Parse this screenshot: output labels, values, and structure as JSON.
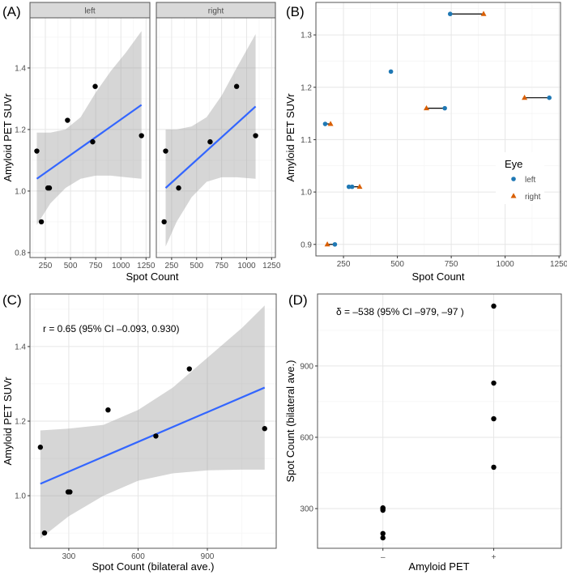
{
  "chart_data": [
    {
      "panel_label": "(A)",
      "type": "scatter",
      "facets": [
        {
          "label": "left",
          "points": [
            [
              165,
              1.13
            ],
            [
              210,
              0.9
            ],
            [
              275,
              1.01
            ],
            [
              290,
              1.01
            ],
            [
              470,
              1.23
            ],
            [
              720,
              1.16
            ],
            [
              745,
              1.34
            ],
            [
              1205,
              1.18
            ]
          ],
          "fit": [
            [
              165,
              1.04
            ],
            [
              1205,
              1.28
            ]
          ],
          "band": {
            "x": [
              165,
              300,
              450,
              600,
              750,
              900,
              1050,
              1205
            ],
            "lower": [
              0.89,
              0.96,
              1.01,
              1.04,
              1.05,
              1.05,
              1.045,
              1.04
            ],
            "upper": [
              1.19,
              1.19,
              1.2,
              1.24,
              1.32,
              1.39,
              1.45,
              1.52
            ]
          }
        },
        {
          "label": "right",
          "points": [
            [
              175,
              0.9
            ],
            [
              190,
              1.13
            ],
            [
              320,
              1.01
            ],
            [
              635,
              1.16
            ],
            [
              900,
              1.34
            ],
            [
              1090,
              1.18
            ]
          ],
          "fit": [
            [
              190,
              1.01
            ],
            [
              1090,
              1.275
            ]
          ],
          "band": {
            "x": [
              190,
              300,
              450,
              600,
              750,
              900,
              1090
            ],
            "lower": [
              0.82,
              0.9,
              0.98,
              1.03,
              1.045,
              1.045,
              1.04
            ],
            "upper": [
              1.2,
              1.2,
              1.21,
              1.24,
              1.31,
              1.4,
              1.51
            ]
          }
        }
      ],
      "xlabel": "Spot Count",
      "ylabel": "Amyloid PET SUVr",
      "xlim": [
        97,
        1288
      ],
      "ylim": [
        0.784,
        1.563
      ],
      "xticks": [
        250,
        500,
        750,
        1000,
        1250
      ],
      "xtick_labels": [
        "250",
        "500",
        "750",
        "1000",
        "1250"
      ],
      "yticks": [
        0.8,
        1.0,
        1.2,
        1.4
      ],
      "ytick_labels": [
        "0.8",
        "1.0",
        "1.2",
        "1.4"
      ],
      "grid": true,
      "colors": {
        "points": "#000000",
        "fit": "#3366FF",
        "band": "#999999"
      }
    },
    {
      "panel_label": "(B)",
      "type": "scatter",
      "series": [
        {
          "name": "left",
          "shape": "circle",
          "color": "#1F78B4",
          "points": [
            [
              165,
              1.13
            ],
            [
              210,
              0.9
            ],
            [
              275,
              1.01
            ],
            [
              290,
              1.01
            ],
            [
              470,
              1.23
            ],
            [
              720,
              1.16
            ],
            [
              745,
              1.34
            ],
            [
              1205,
              1.18
            ]
          ]
        },
        {
          "name": "right",
          "shape": "triangle",
          "color": "#D95F02",
          "points": [
            [
              190,
              1.13
            ],
            [
              175,
              0.9
            ],
            [
              325,
              1.01
            ],
            [
              635,
              1.16
            ],
            [
              900,
              1.34
            ],
            [
              1090,
              1.18
            ]
          ]
        }
      ],
      "segments": [
        [
          165,
          190,
          1.13
        ],
        [
          175,
          210,
          0.9
        ],
        [
          275,
          325,
          1.01
        ],
        [
          635,
          720,
          1.16
        ],
        [
          745,
          900,
          1.34
        ],
        [
          1090,
          1205,
          1.18
        ]
      ],
      "legend": {
        "title": "Eye",
        "position": "right",
        "labels": [
          "left",
          "right"
        ]
      },
      "xlabel": "Spot Count",
      "ylabel": "Amyloid PET SUVr",
      "xlim": [
        122,
        1257
      ],
      "ylim": [
        0.878,
        1.362
      ],
      "xticks": [
        250,
        500,
        750,
        1000,
        1250
      ],
      "xtick_labels": [
        "250",
        "500",
        "750",
        "1000",
        "1250"
      ],
      "yticks": [
        0.9,
        1.0,
        1.1,
        1.2,
        1.3
      ],
      "ytick_labels": [
        "0.9",
        "1.0",
        "1.1",
        "1.2",
        "1.3"
      ],
      "grid": true
    },
    {
      "panel_label": "(C)",
      "type": "scatter",
      "points": [
        [
          177,
          1.13
        ],
        [
          195,
          0.9
        ],
        [
          297,
          1.01
        ],
        [
          305,
          1.01
        ],
        [
          470,
          1.23
        ],
        [
          677,
          1.16
        ],
        [
          822,
          1.34
        ],
        [
          1148,
          1.18
        ]
      ],
      "fit": [
        [
          177,
          1.032
        ],
        [
          1148,
          1.29
        ]
      ],
      "band": {
        "x": [
          177,
          300,
          450,
          600,
          750,
          900,
          1050,
          1148
        ],
        "lower": [
          0.885,
          0.945,
          1.0,
          1.04,
          1.06,
          1.068,
          1.07,
          1.07
        ],
        "upper": [
          1.175,
          1.18,
          1.19,
          1.23,
          1.29,
          1.37,
          1.45,
          1.51
        ]
      },
      "annotation": "r = 0.65 (95% CI –0.093, 0.930)",
      "xlabel": "Spot Count (bilateral ave.)",
      "ylabel": "Amyloid PET SUVr",
      "xlim": [
        132,
        1198
      ],
      "ylim": [
        0.859,
        1.541
      ],
      "xticks": [
        300,
        600,
        900
      ],
      "xtick_labels": [
        "300",
        "600",
        "900"
      ],
      "yticks": [
        1.0,
        1.2,
        1.4
      ],
      "ytick_labels": [
        "1.0",
        "1.2",
        "1.4"
      ],
      "grid": true,
      "colors": {
        "points": "#000000",
        "fit": "#3366FF",
        "band": "#999999"
      }
    },
    {
      "panel_label": "(D)",
      "type": "scatter",
      "categories": [
        "–",
        "+"
      ],
      "groups": [
        {
          "category": "–",
          "values": [
            177,
            195,
            293,
            300,
            303
          ]
        },
        {
          "category": "+",
          "values": [
            474,
            678,
            828,
            1152
          ]
        }
      ],
      "annotation": "δ = –538  (95% CI  –979, –97 )",
      "xlabel": "Amyloid PET",
      "ylabel": "Spot Count (bilateral ave.)",
      "ylim": [
        133,
        1203
      ],
      "yticks": [
        300,
        600,
        900
      ],
      "ytick_labels": [
        "300",
        "600",
        "900"
      ],
      "grid": true
    }
  ]
}
